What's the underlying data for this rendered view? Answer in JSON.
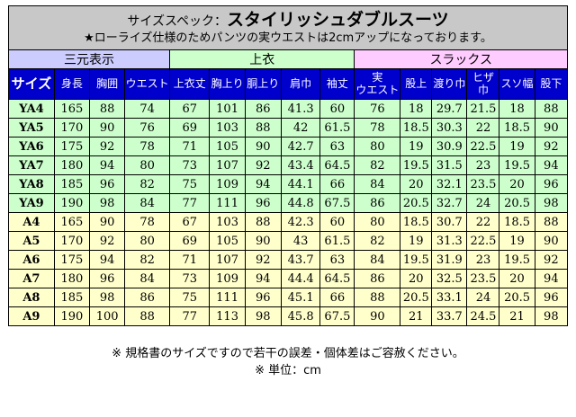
{
  "title": {
    "prefix": "サイズスペック：",
    "main": "スタイリッシュダブルスーツ",
    "note": "★ローライズ仕様のためパンツの実ウエストは2cmアップになっております。"
  },
  "groups": {
    "nominal": "三元表示",
    "jacket": "上衣",
    "slacks": "スラックス"
  },
  "columns": [
    {
      "label": "サイズ"
    },
    {
      "label": "身長"
    },
    {
      "label": "胸囲"
    },
    {
      "label": "ウエスト"
    },
    {
      "label": "上衣丈"
    },
    {
      "label": "胸上り"
    },
    {
      "label": "胴上り"
    },
    {
      "label": "肩巾"
    },
    {
      "label": "袖丈"
    },
    {
      "label": "実ウエスト",
      "line1": "実",
      "line2": "ウエスト"
    },
    {
      "label": "股上"
    },
    {
      "label": "渡り巾"
    },
    {
      "label": "ヒザ巾",
      "line1": "ヒザ",
      "line2": "巾"
    },
    {
      "label": "スソ幅"
    },
    {
      "label": "股下"
    }
  ],
  "rows": [
    {
      "size": "YA4",
      "cells": [
        "165",
        "88",
        "74",
        "67",
        "101",
        "86",
        "41.3",
        "60",
        "76",
        "18",
        "29.7",
        "21.5",
        "18",
        "88"
      ]
    },
    {
      "size": "YA5",
      "cells": [
        "170",
        "90",
        "76",
        "69",
        "103",
        "88",
        "42",
        "61.5",
        "78",
        "18.5",
        "30.3",
        "22",
        "18.5",
        "90"
      ]
    },
    {
      "size": "YA6",
      "cells": [
        "175",
        "92",
        "78",
        "71",
        "105",
        "90",
        "42.7",
        "63",
        "80",
        "19",
        "30.9",
        "22.5",
        "19",
        "92"
      ]
    },
    {
      "size": "YA7",
      "cells": [
        "180",
        "94",
        "80",
        "73",
        "107",
        "92",
        "43.4",
        "64.5",
        "82",
        "19.5",
        "31.5",
        "23",
        "19.5",
        "94"
      ]
    },
    {
      "size": "YA8",
      "cells": [
        "185",
        "96",
        "82",
        "75",
        "109",
        "94",
        "44.1",
        "66",
        "84",
        "20",
        "32.1",
        "23.5",
        "20",
        "96"
      ]
    },
    {
      "size": "YA9",
      "cells": [
        "190",
        "98",
        "84",
        "77",
        "111",
        "96",
        "44.8",
        "67.5",
        "86",
        "20.5",
        "32.7",
        "24",
        "20.5",
        "98"
      ]
    },
    {
      "size": "A4",
      "cells": [
        "165",
        "90",
        "78",
        "67",
        "103",
        "88",
        "42.3",
        "60",
        "80",
        "18.5",
        "30.7",
        "22",
        "18.5",
        "88"
      ]
    },
    {
      "size": "A5",
      "cells": [
        "170",
        "92",
        "80",
        "69",
        "105",
        "90",
        "43",
        "61.5",
        "82",
        "19",
        "31.3",
        "22.5",
        "19",
        "90"
      ]
    },
    {
      "size": "A6",
      "cells": [
        "175",
        "94",
        "82",
        "71",
        "107",
        "92",
        "43.7",
        "63",
        "84",
        "19.5",
        "31.9",
        "23",
        "19.5",
        "92"
      ]
    },
    {
      "size": "A7",
      "cells": [
        "180",
        "96",
        "84",
        "73",
        "109",
        "94",
        "44.4",
        "64.5",
        "86",
        "20",
        "32.5",
        "23.5",
        "20",
        "94"
      ]
    },
    {
      "size": "A8",
      "cells": [
        "185",
        "98",
        "86",
        "75",
        "111",
        "96",
        "45.1",
        "66",
        "88",
        "20.5",
        "33.1",
        "24",
        "20.5",
        "96"
      ]
    },
    {
      "size": "A9",
      "cells": [
        "190",
        "100",
        "88",
        "77",
        "113",
        "98",
        "45.8",
        "67.5",
        "90",
        "21",
        "33.7",
        "24.5",
        "21",
        "98"
      ]
    }
  ],
  "colors": {
    "title_bg": "#c8c8c8",
    "header_bg": "#0000cc",
    "header_text": "#ffffff",
    "ya_rows": "#ccffcc",
    "a_rows": "#ffffcc",
    "group_nominal": "#ccccff",
    "group_jacket": "#ccffcc",
    "group_slacks": "#ffccff"
  },
  "footer": {
    "disclaimer": "※ 規格書のサイズですので若干の誤差・個体差はご容赦ください。",
    "unit": "※ 単位：cm"
  }
}
